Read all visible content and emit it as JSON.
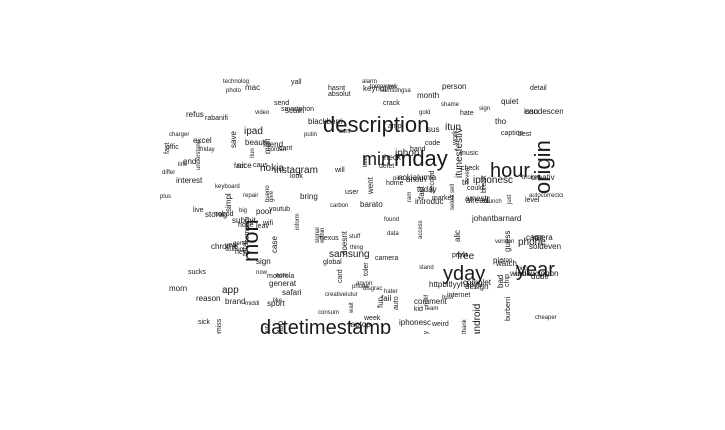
{
  "figure": {
    "type": "word-cloud",
    "text_color": "#1a1a1a",
    "background": "#ffffff",
    "large_words": [
      "description",
      "mday",
      "min",
      "hour",
      "origin",
      "mon",
      "yday",
      "year",
      "datetimestamp"
    ],
    "medium_words": [
      "iphon",
      "phone",
      "app",
      "free",
      "itun",
      "ipad",
      "android",
      "samsung",
      "nokia",
      "iphonesc",
      "itunesfestiv",
      "instagram"
    ],
    "small_words": [
      "autocorrectcreat",
      "creativeiutur",
      "disgrac",
      "crack",
      "code",
      "consum",
      "video",
      "ijordan",
      "amestr",
      "auto",
      "carbon",
      "push",
      "chip",
      "anoth",
      "motorola",
      "submit",
      "fun",
      "excel",
      "develop",
      "signal",
      "httpbitlyyh1pyu",
      "hater",
      "poor",
      "introduc",
      "gold",
      "today",
      "inform",
      "storag",
      "anyon",
      "doesnt",
      "yall",
      "understand",
      "profit",
      "repair",
      "reason",
      "beauti",
      "sign",
      "youtub",
      "notif",
      "work",
      "will",
      "delet",
      "heck",
      "piec",
      "interest",
      "detail",
      "brand",
      "weird",
      "comment",
      "data",
      "burberri",
      "generat",
      "call",
      "middl",
      "safari",
      "sus",
      "sell",
      "caus",
      "end",
      "save",
      "stuff",
      "could",
      "smartphon",
      "alic",
      "thank",
      "kid",
      "soldeven",
      "barato",
      "give",
      "launch",
      "sick",
      "dude",
      "feel",
      "check",
      "guess",
      "rabanifi",
      "absolut",
      "iphonesc",
      "putin",
      "morn",
      "ram",
      "found",
      "bueno",
      "friday",
      "enough",
      "access",
      "new",
      "total",
      "offic",
      "within",
      "quiet",
      "seven",
      "windowsphon",
      "send",
      "user",
      "keynot",
      "internet",
      "nobod",
      "alreadi",
      "level",
      "johantbarnard",
      "condescens",
      "case",
      "man",
      "technolog",
      "caption",
      "compani",
      "market",
      "team",
      "shame",
      "hasnt",
      "complet",
      "samsungsa",
      "differ",
      "bring",
      "alarm",
      "ask",
      "refus",
      "fail",
      "sucks",
      "note",
      "amp",
      "tomorrow",
      "break",
      "design",
      "emiss",
      "hate",
      "bad",
      "sport",
      "person",
      "select",
      "fact",
      "second",
      "home",
      "friend",
      "scam",
      "wait",
      "laptop",
      "year",
      "cheaper",
      "issu",
      "version",
      "camera",
      "nice",
      "nokialumia",
      "stop",
      "use",
      "chrome",
      "now",
      "wifi",
      "live",
      "big",
      "bday",
      "miss",
      "look",
      "sign",
      "watch",
      "week",
      "itun",
      "music",
      "hand",
      "best",
      "mac",
      "tri",
      "pic",
      "stand",
      "plus",
      "went",
      "colour",
      "blackberri",
      "charger",
      "thing",
      "leav",
      "cant",
      "tho",
      "toler",
      "back",
      "done",
      "month",
      "student",
      "card",
      "phone",
      "line",
      "camera",
      "busi",
      "beer",
      "cant",
      "fast",
      "global",
      "fast",
      "simpl",
      "just",
      "like",
      "nexus",
      "broken",
      "keyboard",
      "realli",
      "creativ",
      "hope",
      "gone",
      "photo",
      "came"
    ]
  }
}
